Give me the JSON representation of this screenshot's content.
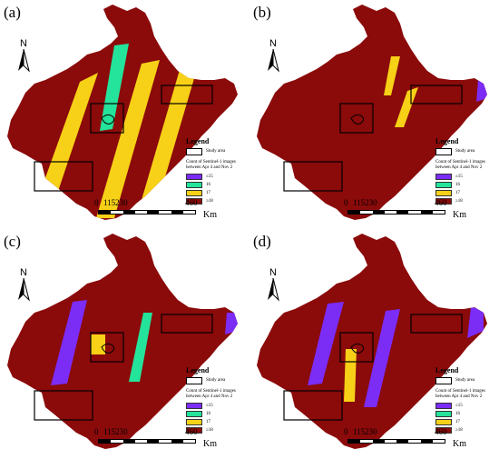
{
  "colors": {
    "le15": "#7b2cf5",
    "c16": "#24e39a",
    "c17": "#f7d117",
    "ge18": "#8b0a0a",
    "outline": "#000000"
  },
  "north_label": "N",
  "legend": {
    "title": "Legend",
    "study_area": "Study area",
    "caption": "Count of Sentinel-1 images between Apr 4 and Nov 2",
    "classes": [
      "≤15",
      "16",
      "17",
      "≥18"
    ]
  },
  "scalebar": {
    "ticks": [
      "0",
      "115230",
      "460"
    ],
    "unit": "Km"
  },
  "panels": [
    {
      "label": "(a)",
      "stripes": [
        "c17",
        "c16",
        "c17",
        "c17"
      ]
    },
    {
      "label": "(b)",
      "stripes": [
        "c16",
        "c17",
        "c17",
        "le15"
      ]
    },
    {
      "label": "(c)",
      "stripes": [
        "le15",
        "c17",
        "c16",
        "le15"
      ]
    },
    {
      "label": "(d)",
      "stripes": [
        "le15",
        "c17",
        "le15",
        "le15"
      ]
    }
  ]
}
